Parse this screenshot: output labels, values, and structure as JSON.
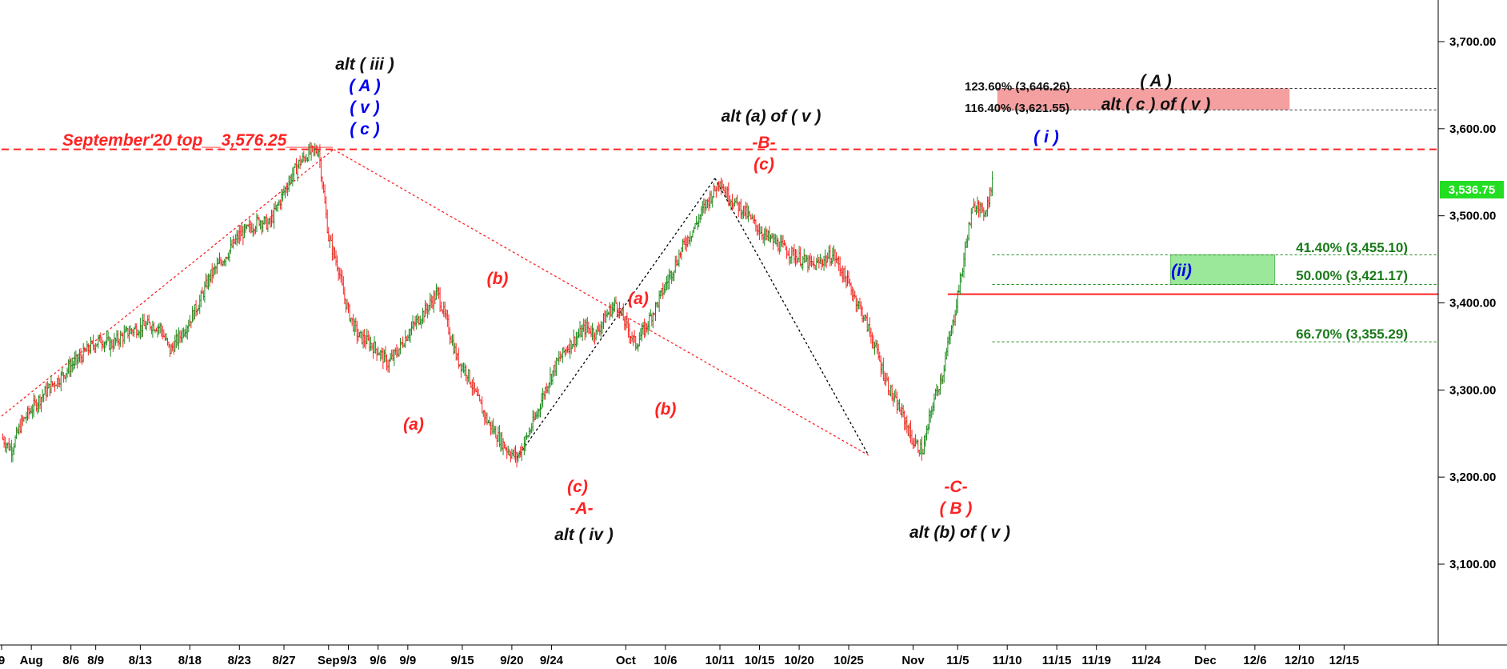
{
  "chart_data": {
    "type": "line",
    "title": "",
    "xlabel": "",
    "ylabel": "",
    "ylim": [
      3030,
      3770
    ],
    "yticks": [
      "3,100.00",
      "3,200.00",
      "3,300.00",
      "3,400.00",
      "3,500.00",
      "3,600.00",
      "3,700.00"
    ],
    "ytick_values": [
      3100,
      3200,
      3300,
      3400,
      3500,
      3600,
      3700
    ],
    "xticks": [
      "9",
      "Aug",
      "8/6",
      "8/9",
      "8/13",
      "8/18",
      "8/23",
      "8/27",
      "Sep",
      "9/3",
      "9/6",
      "9/9",
      "9/15",
      "9/20",
      "9/24",
      "Oct",
      "10/6",
      "10/11",
      "10/15",
      "10/20",
      "10/25",
      "Nov",
      "11/5",
      "11/10",
      "11/15",
      "11/19",
      "11/24",
      "Dec",
      "12/6",
      "12/10",
      "12/15"
    ],
    "xtick_index": [
      0,
      6,
      14,
      19,
      28,
      38,
      48,
      57,
      66,
      70,
      76,
      82,
      93,
      103,
      111,
      126,
      134,
      145,
      153,
      161,
      171,
      184,
      193,
      203,
      213,
      221,
      231,
      243,
      253,
      262,
      271
    ],
    "index_range": [
      0,
      290
    ],
    "grid": false,
    "series": [
      {
        "type": "candlestick",
        "x": [
          0,
          2,
          4,
          6,
          8,
          10,
          12,
          14,
          16,
          18,
          20,
          22,
          24,
          26,
          28,
          30,
          32,
          34,
          36,
          38,
          40,
          42,
          44,
          46,
          48,
          50,
          52,
          54,
          56,
          58,
          60,
          62,
          64,
          66,
          68,
          69,
          70,
          71,
          72,
          74,
          76,
          78,
          80,
          82,
          84,
          86,
          88,
          90,
          92,
          94,
          96,
          98,
          100,
          102,
          104,
          106,
          108,
          110,
          112,
          114,
          116,
          118,
          120,
          122,
          124,
          126,
          128,
          130,
          132,
          134,
          136,
          138,
          140,
          142,
          144,
          145,
          146,
          148,
          150,
          152,
          154,
          156,
          158,
          160,
          162,
          164,
          166,
          168,
          170,
          172,
          174,
          176,
          178,
          180,
          182,
          184,
          186,
          188,
          190,
          191,
          192,
          193,
          194,
          195,
          196,
          197,
          198,
          199,
          200
        ],
        "close": [
          3245,
          3232,
          3262,
          3278,
          3292,
          3305,
          3315,
          3328,
          3338,
          3350,
          3358,
          3352,
          3360,
          3368,
          3372,
          3375,
          3372,
          3345,
          3362,
          3380,
          3402,
          3430,
          3445,
          3460,
          3478,
          3485,
          3495,
          3490,
          3515,
          3540,
          3560,
          3572,
          3576,
          3475,
          3440,
          3410,
          3390,
          3375,
          3362,
          3355,
          3345,
          3330,
          3345,
          3365,
          3380,
          3395,
          3412,
          3375,
          3335,
          3320,
          3290,
          3265,
          3248,
          3232,
          3222,
          3245,
          3272,
          3305,
          3330,
          3348,
          3360,
          3372,
          3365,
          3385,
          3400,
          3375,
          3352,
          3372,
          3395,
          3420,
          3445,
          3470,
          3488,
          3512,
          3530,
          3543,
          3528,
          3515,
          3505,
          3490,
          3478,
          3470,
          3462,
          3455,
          3448,
          3442,
          3450,
          3455,
          3432,
          3410,
          3385,
          3355,
          3320,
          3290,
          3270,
          3240,
          3230,
          3285,
          3320,
          3350,
          3375,
          3410,
          3440,
          3480,
          3505,
          3518,
          3500,
          3515,
          3536.75
        ]
      }
    ],
    "last_price_label": "3,536.75",
    "horizontal_lines": [
      {
        "value": 3646.26,
        "style": "dotted",
        "color": "#333333"
      },
      {
        "value": 3621.55,
        "style": "dotted",
        "color": "#333333"
      },
      {
        "value": 3576.25,
        "style": "dashed",
        "color": "#ff2222"
      },
      {
        "value": 3455.1,
        "style": "dotted",
        "color": "#1a8a1a"
      },
      {
        "value": 3421.17,
        "style": "dotted",
        "color": "#1a8a1a"
      },
      {
        "value": 3410,
        "style": "solid",
        "color": "#ff2222"
      },
      {
        "value": 3355.29,
        "style": "dotted",
        "color": "#1a8a1a"
      }
    ],
    "trend_lines": [
      {
        "from": [
          0,
          3270
        ],
        "to": [
          67,
          3576.25
        ],
        "color": "#ff2222",
        "style": "dotted"
      },
      {
        "from": [
          67,
          3576.25
        ],
        "to": [
          175,
          3225
        ],
        "color": "#ff2222",
        "style": "dotted"
      },
      {
        "from": [
          104,
          3222
        ],
        "to": [
          144,
          3543
        ],
        "color": "#000000",
        "style": "dotted"
      },
      {
        "from": [
          144,
          3543
        ],
        "to": [
          175,
          3225
        ],
        "color": "#000000",
        "style": "dotted"
      }
    ],
    "zones": [
      {
        "label": "(ii)",
        "y_from": 3455.1,
        "y_to": 3421.17,
        "color": "#9be89b"
      },
      {
        "label": "",
        "y_from": 3646.26,
        "y_to": 3621.55,
        "color": "#f5a0a0"
      }
    ],
    "annotations": {
      "sep_top": "September'20 top__3,576.25_____",
      "alt_iii": "alt ( iii )",
      "A_blue": "( A )",
      "v_blue": "( v )",
      "c_blue": "( c )",
      "a1": "(a)",
      "b1": "(b)",
      "c_red_A": "(c)",
      "A_red": "-A-",
      "alt_iv": "alt ( iv )",
      "a2": "(a)",
      "b2": "(b)",
      "alt_a_of_v": "alt (a) of ( v )",
      "B_red": "-B-",
      "c_red_B": "(c)",
      "C_red": "-C-",
      "B_paren": "( B )",
      "alt_b_of_v": "alt (b) of ( v )",
      "i_blue": "( i )",
      "A_black": "( A )",
      "alt_c_of_v": "alt ( c ) of ( v )",
      "ii_blue": "(ii)"
    },
    "fib_labels": {
      "f123": "123.60% (3,646.26)",
      "f116": "116.40% (3,621.55)",
      "f41": "41.40% (3,455.10)",
      "f50": "50.00% (3,421.17)",
      "f66": "66.70% (3,355.29)"
    }
  },
  "colors": {
    "up": "#1a8a1a",
    "down": "#ff2222",
    "red_text": "#ff2222",
    "blue_text": "#0000ee",
    "green_text": "#1a7a1a",
    "last_price_bg": "#22dd22"
  }
}
